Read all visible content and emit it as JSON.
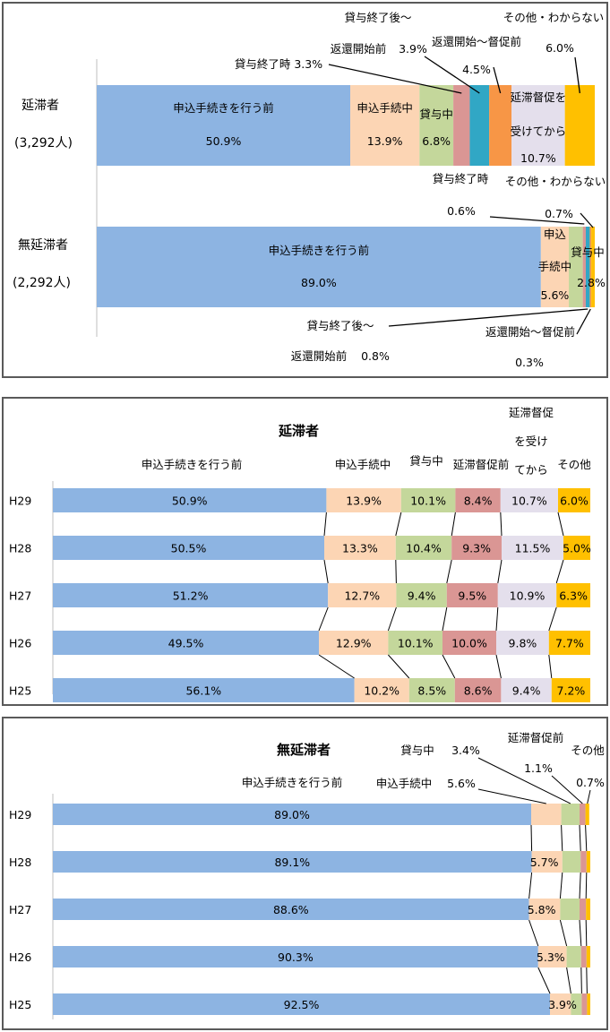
{
  "colors": {
    "blue": "#8db4e2",
    "peach": "#fcd5b4",
    "green": "#c4d79b",
    "pink": "#da9694",
    "teal": "#31a7c5",
    "orange": "#f79646",
    "lavender": "#e4dfec",
    "yellow": "#ffc000"
  },
  "chart_data": [
    {
      "type": "bar",
      "orientation": "horizontal",
      "stacked": true,
      "categories": [
        "延滞者",
        "無延滞者"
      ],
      "category_counts": [
        "(3,292人)",
        "(2,292人)"
      ],
      "series": [
        {
          "name": "申込手続きを行う前",
          "values": [
            50.9,
            89.0
          ]
        },
        {
          "name": "申込手続中",
          "values": [
            13.9,
            5.6
          ]
        },
        {
          "name": "貸与中",
          "values": [
            6.8,
            2.8
          ]
        },
        {
          "name": "貸与終了時",
          "values": [
            3.3,
            0.6
          ]
        },
        {
          "name": "貸与終了後～返還開始前",
          "values": [
            3.9,
            0.8
          ]
        },
        {
          "name": "返還開始～督促前",
          "values": [
            4.5,
            0.3
          ]
        },
        {
          "name": "延滞督促を受けてから",
          "values": [
            10.7,
            null
          ]
        },
        {
          "name": "その他・わからない",
          "values": [
            6.0,
            0.7
          ]
        }
      ],
      "labels": {
        "r0": {
          "s0a": "申込手続きを行う前",
          "s0b": "50.9%",
          "s1a": "申込手続中",
          "s1b": "13.9%",
          "s2a": "貸与中",
          "s2b": "6.8%",
          "s3": "貸与終了時 3.3%",
          "s4a": "貸与終了後～",
          "s4b": "返還開始前",
          "s4c": "3.9%",
          "s5a": "返還開始～督促前",
          "s5b": "4.5%",
          "s6a": "延滞督促を",
          "s6b": "受けてから",
          "s6c": "10.7%",
          "s7a": "その他・わからない",
          "s7b": "6.0%"
        },
        "r1": {
          "s0a": "申込手続きを行う前",
          "s0b": "89.0%",
          "s1a": "申込",
          "s1b": "手続中",
          "s1c": "5.6%",
          "s2a": "貸与中",
          "s2b": "2.8%",
          "s3a": "貸与終了時",
          "s3b": "0.6%",
          "s4a": "貸与終了後～",
          "s4b": "返還開始前",
          "s4c": "0.8%",
          "s5a": "返還開始～督促前",
          "s5b": "0.3%",
          "s7a": "その他・わからない",
          "s7b": "0.7%"
        }
      }
    },
    {
      "type": "bar",
      "orientation": "horizontal",
      "stacked": true,
      "title": "延滞者",
      "categories": [
        "H29",
        "H28",
        "H27",
        "H26",
        "H25"
      ],
      "series": [
        {
          "name": "申込手続きを行う前",
          "values": [
            50.9,
            50.5,
            51.2,
            49.5,
            56.1
          ]
        },
        {
          "name": "申込手続中",
          "values": [
            13.9,
            13.3,
            12.7,
            12.9,
            10.2
          ]
        },
        {
          "name": "貸与中",
          "values": [
            10.1,
            10.4,
            9.4,
            10.1,
            8.5
          ]
        },
        {
          "name": "延滞督促前",
          "values": [
            8.4,
            9.3,
            9.5,
            10.0,
            8.6
          ]
        },
        {
          "name": "延滞督促を受けてから",
          "values": [
            10.7,
            11.5,
            10.9,
            9.8,
            9.4
          ]
        },
        {
          "name": "その他",
          "values": [
            6.0,
            5.0,
            6.3,
            7.7,
            7.2
          ]
        }
      ],
      "legend_labels": {
        "s0": "申込手続きを行う前",
        "s1": "申込手続中",
        "s2": "貸与中",
        "s3": "延滞督促前",
        "s4a": "延滞督促",
        "s4b": "を受け",
        "s4c": "てから",
        "s5": "その他"
      },
      "value_labels": [
        [
          "50.9%",
          "13.9%",
          "10.1%",
          "8.4%",
          "10.7%",
          "6.0%"
        ],
        [
          "50.5%",
          "13.3%",
          "10.4%",
          "9.3%",
          "11.5%",
          "5.0%"
        ],
        [
          "51.2%",
          "12.7%",
          "9.4%",
          "9.5%",
          "10.9%",
          "6.3%"
        ],
        [
          "49.5%",
          "12.9%",
          "10.1%",
          "10.0%",
          "9.8%",
          "7.7%"
        ],
        [
          "56.1%",
          "10.2%",
          "8.5%",
          "8.6%",
          "9.4%",
          "7.2%"
        ]
      ]
    },
    {
      "type": "bar",
      "orientation": "horizontal",
      "stacked": true,
      "title": "無延滞者",
      "categories": [
        "H29",
        "H28",
        "H27",
        "H26",
        "H25"
      ],
      "series": [
        {
          "name": "申込手続きを行う前",
          "values": [
            89.0,
            89.1,
            88.6,
            90.3,
            92.5
          ]
        },
        {
          "name": "申込手続中",
          "values": [
            5.6,
            5.7,
            5.8,
            5.3,
            3.9
          ]
        },
        {
          "name": "貸与中",
          "values": [
            3.4,
            3.4,
            3.6,
            2.7,
            2.0
          ]
        },
        {
          "name": "延滞督促前",
          "values": [
            1.1,
            1.1,
            1.2,
            1.0,
            1.0
          ]
        },
        {
          "name": "その他",
          "values": [
            0.7,
            0.7,
            0.8,
            0.7,
            0.6
          ]
        }
      ],
      "legend_labels": {
        "s0": "申込手続きを行う前",
        "s1a": "申込手続中",
        "s1b": "5.6%",
        "s2a": "貸与中",
        "s2b": "3.4%",
        "s3a": "延滞督促前",
        "s3b": "1.1%",
        "s4a": "その他",
        "s4b": "0.7%"
      },
      "value_labels": [
        [
          "89.0%"
        ],
        [
          "89.1%",
          "5.7%"
        ],
        [
          "88.6%",
          "5.8%"
        ],
        [
          "90.3%",
          "5.3%"
        ],
        [
          "92.5%",
          "3.9%"
        ]
      ]
    }
  ]
}
